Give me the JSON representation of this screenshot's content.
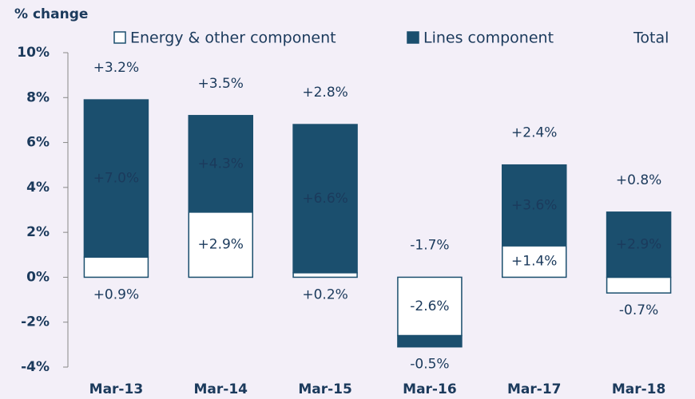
{
  "chart_data": {
    "type": "bar",
    "stacked": true,
    "y_axis_label": "% change",
    "categories": [
      "Mar-13",
      "Mar-14",
      "Mar-15",
      "Mar-16",
      "Mar-17",
      "Mar-18"
    ],
    "series": [
      {
        "name": "Energy & other component",
        "color": "#ffffff",
        "stroke": "#1b4f6e",
        "values": [
          0.9,
          2.9,
          0.2,
          -2.6,
          1.4,
          -0.7
        ],
        "value_labels": [
          "+0.9%",
          "+2.9%",
          "+0.2%",
          "-2.6%",
          "+1.4%",
          "-0.7%"
        ]
      },
      {
        "name": "Lines component",
        "color": "#1b4f6e",
        "values": [
          7.0,
          4.3,
          6.6,
          -0.5,
          3.6,
          2.9
        ],
        "value_labels": [
          "+7.0%",
          "+4.3%",
          "+6.6%",
          "-0.5%",
          "+3.6%",
          "+2.9%"
        ]
      },
      {
        "name": "Total",
        "color": "#7ab956",
        "labels_only": true,
        "values": [
          3.2,
          3.5,
          2.8,
          -1.7,
          2.4,
          0.8
        ],
        "value_labels": [
          "+3.2%",
          "+3.5%",
          "+2.8%",
          "-1.7%",
          "+2.4%",
          "+0.8%"
        ]
      }
    ],
    "ylim": [
      -4,
      10
    ],
    "yticks": [
      {
        "value": -4,
        "label": "-4%"
      },
      {
        "value": -2,
        "label": "-2%"
      },
      {
        "value": 0,
        "label": "0%"
      },
      {
        "value": 2,
        "label": "2%"
      },
      {
        "value": 4,
        "label": "4%"
      },
      {
        "value": 6,
        "label": "6%"
      },
      {
        "value": 8,
        "label": "8%"
      },
      {
        "value": 10,
        "label": "10%"
      }
    ],
    "grid": false
  }
}
